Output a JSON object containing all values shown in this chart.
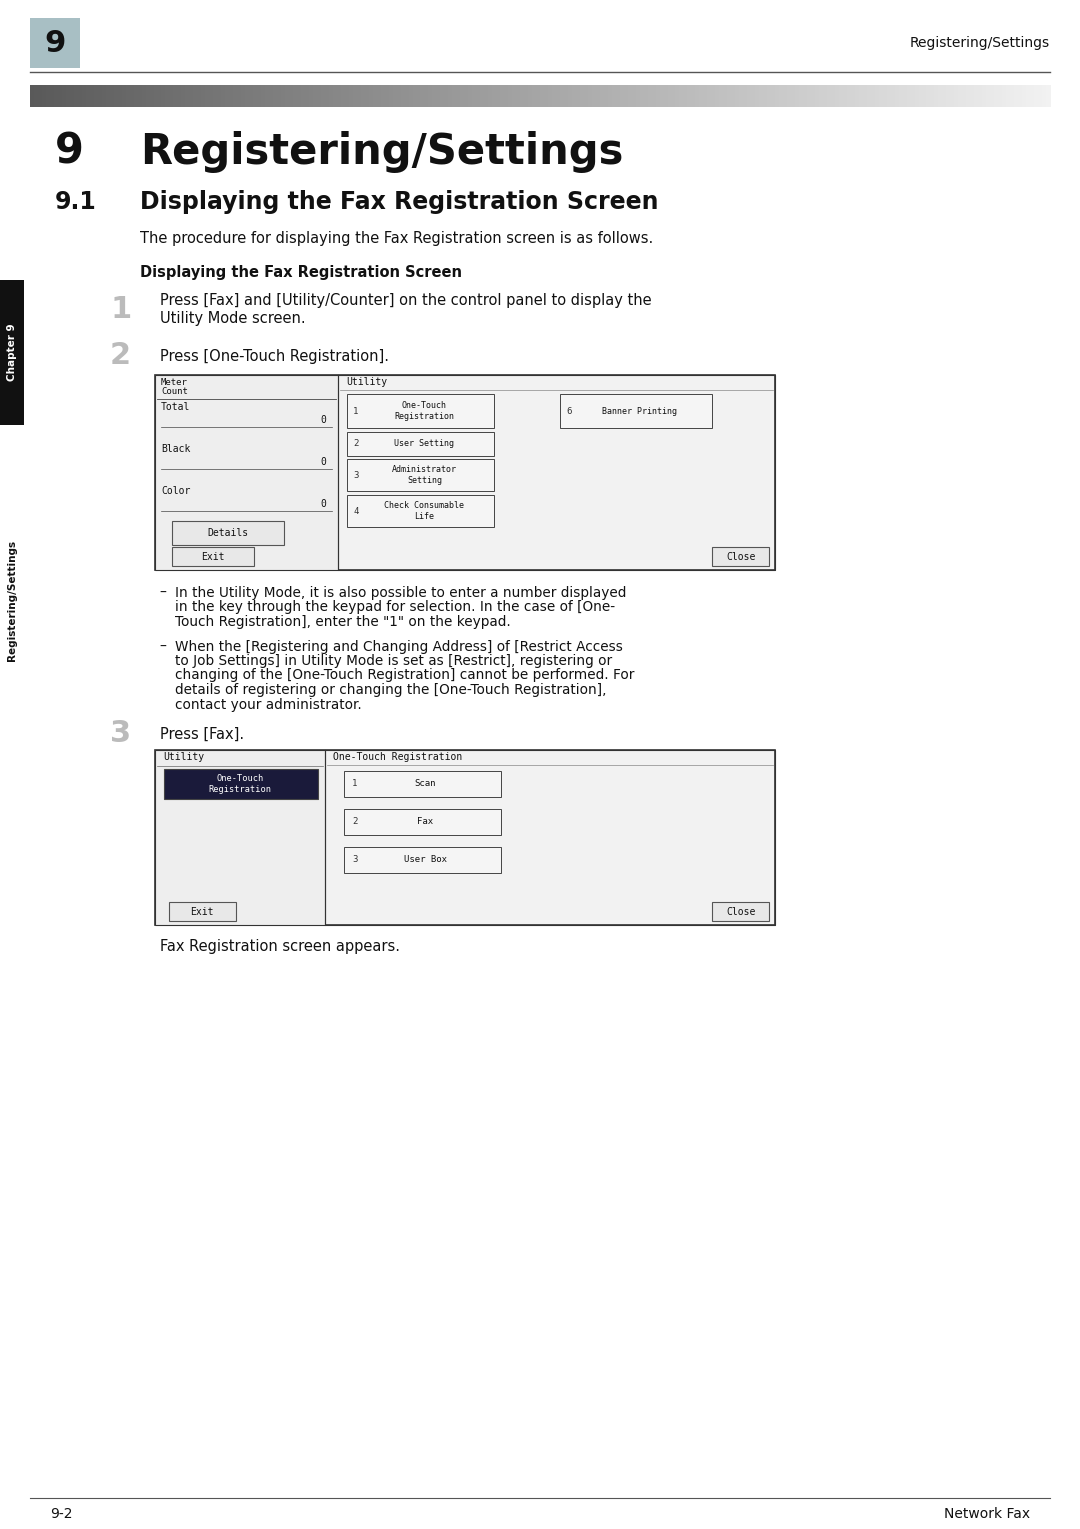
{
  "page_bg": "#ffffff",
  "header_tab_color": "#a8bfc4",
  "header_tab_text": "9",
  "header_right_text": "Registering/Settings",
  "chapter_num": "9",
  "chapter_title": "Registering/Settings",
  "section_num": "9.1",
  "section_title": "Displaying the Fax Registration Screen",
  "intro_text": "The procedure for displaying the Fax Registration screen is as follows.",
  "bold_heading": "Displaying the Fax Registration Screen",
  "step1_text_line1": "Press [Fax] and [Utility/Counter] on the control panel to display the",
  "step1_text_line2": "Utility Mode screen.",
  "step2_text": "Press [One-Touch Registration].",
  "step3_text": "Press [Fax].",
  "footer_note": "Fax Registration screen appears.",
  "bullet1_line1": "In the Utility Mode, it is also possible to enter a number displayed",
  "bullet1_line2": "in the key through the keypad for selection. In the case of [One-",
  "bullet1_line3": "Touch Registration], enter the \"1\" on the keypad.",
  "bullet2_line1": "When the [Registering and Changing Address] of [Restrict Access",
  "bullet2_line2": "to Job Settings] in Utility Mode is set as [Restrict], registering or",
  "bullet2_line3": "changing of the [One-Touch Registration] cannot be performed. For",
  "bullet2_line4": "details of registering or changing the [One-Touch Registration],",
  "bullet2_line5": "contact your administrator.",
  "page_num_left": "9-2",
  "page_num_right": "Network Fax",
  "sidebar_chapter": "Chapter 9",
  "sidebar_section": "Registering/Settings"
}
